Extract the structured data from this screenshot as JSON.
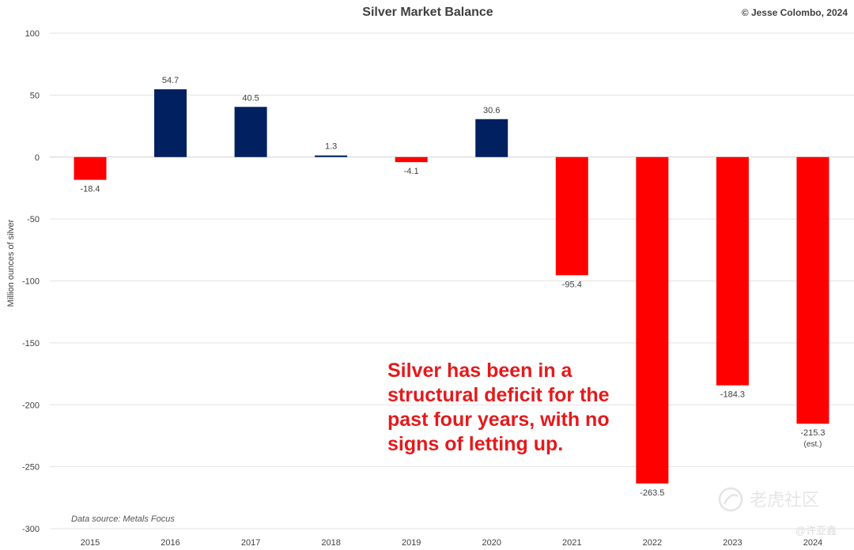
{
  "chart_data": {
    "type": "bar",
    "title": "Silver Market Balance",
    "copyright": "© Jesse Colombo, 2024",
    "xlabel": "",
    "ylabel": "Million ounces of silver",
    "ylim": [
      -300,
      100
    ],
    "yticks": [
      100,
      50,
      0,
      -50,
      -100,
      -150,
      -200,
      -250,
      -300
    ],
    "grid": true,
    "categories": [
      "2015",
      "2016",
      "2017",
      "2018",
      "2019",
      "2020",
      "2021",
      "2022",
      "2023",
      "2024"
    ],
    "values": [
      -18.4,
      54.7,
      40.5,
      1.3,
      -4.1,
      30.6,
      -95.4,
      -263.5,
      -184.3,
      -215.3
    ],
    "data_labels": [
      "-18.4",
      "54.7",
      "40.5",
      "1.3",
      "-4.1",
      "30.6",
      "-95.4",
      "-263.5",
      "-184.3",
      "-215.3"
    ],
    "notes": {
      "2024": "(est.)"
    },
    "colors": {
      "surplus": "#002060",
      "deficit": "#ff0000"
    },
    "source": "Data source: Metals Focus",
    "annotation": {
      "lines": [
        "Silver has been in a",
        "structural deficit for the",
        "past four years, with no",
        "signs of letting up."
      ],
      "color": "#e41a1c"
    }
  },
  "watermark": {
    "brand": "老虎社区",
    "user": "@许亚鑫"
  }
}
